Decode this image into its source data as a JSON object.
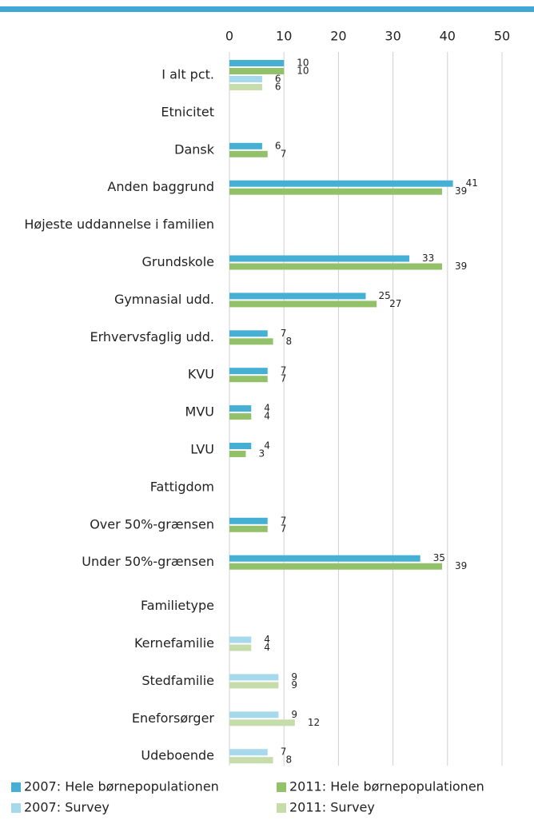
{
  "chart_data": {
    "type": "bar",
    "orientation": "horizontal",
    "categories": [
      "I alt pct.",
      "Etnicitet",
      "Dansk",
      "Anden baggrund",
      "Højeste uddannelse i familien",
      "Grundskole",
      "Gymnasial udd.",
      "Erhvervsfaglig udd.",
      "KVU",
      "MVU",
      "LVU",
      "Fattigdom",
      "Over 50%-grænsen",
      "Under 50%-grænsen",
      "Familietype",
      "Kernefamilie",
      "Stedfamilie",
      "Eneforsørger",
      "Udeboende"
    ],
    "series": [
      {
        "name": "2007: Hele børnepopulationen",
        "color": "#45b0d3",
        "values": [
          10,
          null,
          6,
          41,
          null,
          33,
          25,
          7,
          7,
          4,
          4,
          null,
          7,
          35,
          null,
          null,
          null,
          null,
          null
        ]
      },
      {
        "name": "2011: Hele børnepopulationen",
        "color": "#93c16a",
        "values": [
          10,
          null,
          7,
          39,
          null,
          39,
          27,
          8,
          7,
          4,
          3,
          null,
          7,
          39,
          null,
          null,
          null,
          null,
          null
        ]
      },
      {
        "name": "2007: Survey",
        "color": "#a6d9ec",
        "values": [
          6,
          null,
          null,
          null,
          null,
          null,
          null,
          null,
          null,
          null,
          null,
          null,
          null,
          null,
          null,
          4,
          9,
          9,
          7
        ]
      },
      {
        "name": "2011: Survey",
        "color": "#c6dcaa",
        "values": [
          6,
          null,
          null,
          null,
          null,
          null,
          null,
          null,
          null,
          null,
          null,
          null,
          null,
          null,
          null,
          4,
          9,
          12,
          8
        ]
      }
    ],
    "xlim": [
      0,
      50
    ],
    "xticks": [
      0,
      10,
      20,
      30,
      40,
      50
    ],
    "grid": true
  }
}
